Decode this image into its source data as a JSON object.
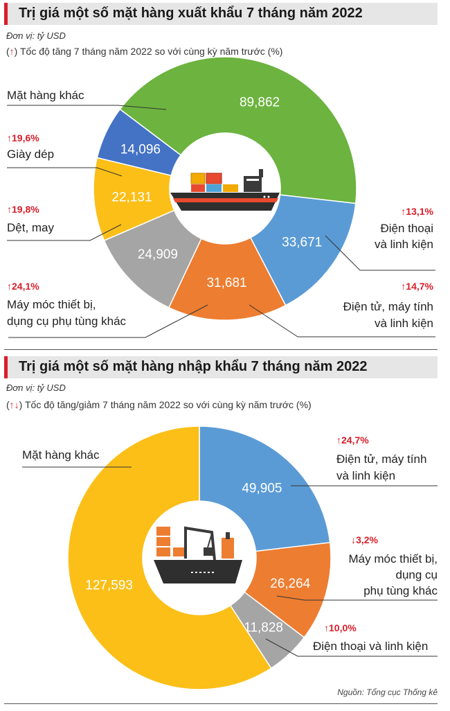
{
  "export": {
    "title": "Trị giá một số mặt hàng xuất khẩu 7 tháng năm 2022",
    "unit": "Đơn vị: tỷ USD",
    "note_arrow": "↑",
    "note_text": "Tốc độ tăng 7 tháng năm 2022 so với cùng kỳ năm trước (%)",
    "labels": {
      "khac": "Mặt hàng khác",
      "giay_growth": "↑19,6%",
      "giay": "Giày dép",
      "det_growth": "↑19,8%",
      "det": "Dệt, may",
      "may_growth": "↑24,1%",
      "may_l1": "Máy móc thiết bị,",
      "may_l2": "dụng cụ phụ tùng khác",
      "dt_growth": "↑13,1%",
      "dt_l1": "Điện thoại",
      "dt_l2": "và linh kiện",
      "dtu_growth": "↑14,7%",
      "dtu_l1": "Điện tử, máy tính",
      "dtu_l2": "và linh kiện"
    }
  },
  "import": {
    "title": "Trị giá một số mặt hàng nhập khẩu 7 tháng năm 2022",
    "unit": "Đơn vị: tỷ USD",
    "note_arrow": "↑↓",
    "note_text": "Tốc độ tăng/giảm 7 tháng năm 2022 so với cùng kỳ năm trước (%)",
    "labels": {
      "khac": "Mặt hàng khác",
      "dtu_growth": "↑24,7%",
      "dtu_l1": "Điện tử, máy tính",
      "dtu_l2": "và linh kiện",
      "may_growth": "↓3,2%",
      "may_l1": "Máy móc thiết bị,",
      "may_l2": "dụng cụ",
      "may_l3": "phụ tùng khác",
      "dt_growth": "↑10,0%",
      "dt_l1": "Điện thoại và linh kiện"
    }
  },
  "source": "Nguồn: Tổng cục Thống kê",
  "chart_data": [
    {
      "type": "pie",
      "title": "Trị giá một số mặt hàng xuất khẩu 7 tháng năm 2022",
      "categories": [
        "Mặt hàng khác",
        "Điện thoại và linh kiện",
        "Điện tử, máy tính và linh kiện",
        "Máy móc thiết bị, dụng cụ phụ tùng khác",
        "Dệt, may",
        "Giày dép"
      ],
      "values": [
        89.862,
        33.671,
        31.681,
        24.909,
        22.131,
        14.096
      ],
      "value_labels": [
        "89,862",
        "33,671",
        "31,681",
        "24,909",
        "22,131",
        "14,096"
      ],
      "growth": [
        "",
        "↑13,1%",
        "↑14,7%",
        "↑24,1%",
        "↑19,8%",
        "↑19,6%"
      ],
      "colors": [
        "#6cb33f",
        "#5b9bd5",
        "#ed7d31",
        "#a5a5a5",
        "#fbbf18",
        "#4472c4"
      ]
    },
    {
      "type": "pie",
      "title": "Trị giá một số mặt hàng nhập khẩu 7 tháng năm 2022",
      "categories": [
        "Điện tử, máy tính và linh kiện",
        "Máy móc thiết bị, dụng cụ phụ tùng khác",
        "Điện thoại và linh kiện",
        "Mặt hàng khác"
      ],
      "values": [
        49.905,
        26.264,
        11.828,
        127.593
      ],
      "value_labels": [
        "49,905",
        "26,264",
        "11,828",
        "127,593"
      ],
      "growth": [
        "↑24,7%",
        "↓3,2%",
        "↑10,0%",
        ""
      ],
      "colors": [
        "#5b9bd5",
        "#ed7d31",
        "#a5a5a5",
        "#fbbf18"
      ]
    }
  ]
}
